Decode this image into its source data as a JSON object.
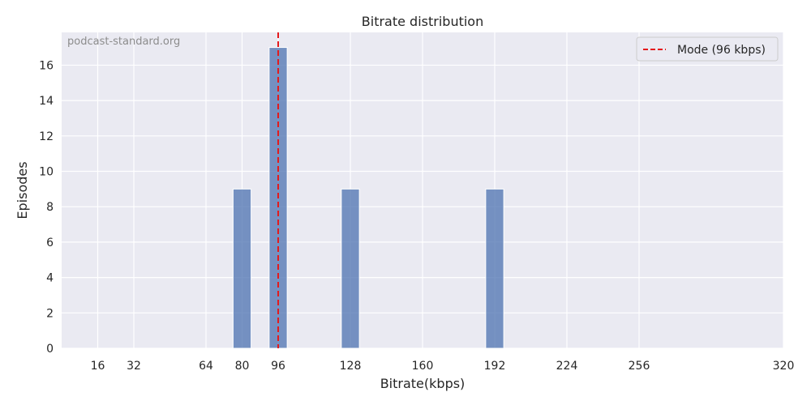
{
  "chart_data": {
    "type": "bar",
    "title": "Bitrate distribution",
    "xlabel": "Bitrate(kbps)",
    "ylabel": "Episodes",
    "watermark": "podcast-standard.org",
    "xlim": [
      0,
      320
    ],
    "ylim": [
      0,
      17.85
    ],
    "xticks": [
      16,
      32,
      64,
      80,
      96,
      128,
      160,
      192,
      224,
      256,
      320
    ],
    "yticks": [
      0,
      2,
      4,
      6,
      8,
      10,
      12,
      14,
      16
    ],
    "bin_width": 8,
    "bars": [
      {
        "x": 80,
        "value": 9
      },
      {
        "x": 96,
        "value": 17
      },
      {
        "x": 128,
        "value": 9
      },
      {
        "x": 192,
        "value": 9
      }
    ],
    "mode_line": {
      "x": 96,
      "label": "Mode (96 kbps)",
      "color": "#e41a1c"
    },
    "legend_position": "top-right",
    "grid": true,
    "colors": {
      "bar": "#4c72b0",
      "background": "#eaeaf2",
      "grid": "#ffffff"
    }
  }
}
